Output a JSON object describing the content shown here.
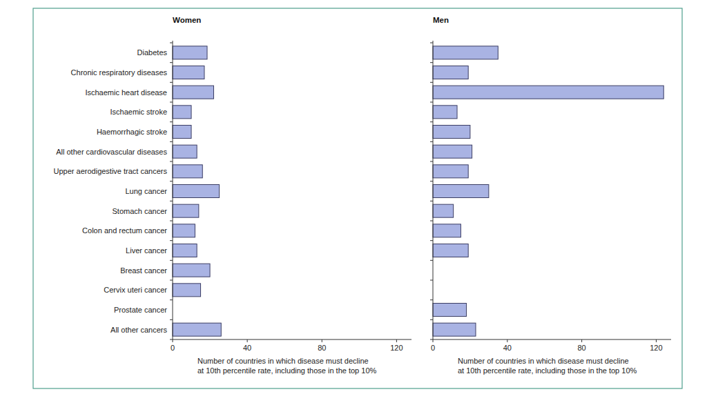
{
  "chart_data": [
    {
      "type": "bar",
      "orientation": "horizontal",
      "title": "Women",
      "categories": [
        "Diabetes",
        "Chronic respiratory diseases",
        "Ischaemic heart disease",
        "Ischaemic stroke",
        "Haemorrhagic stroke",
        "All other cardiovascular diseases",
        "Upper aerodigestive tract cancers",
        "Lung cancer",
        "Stomach cancer",
        "Colon and rectum cancer",
        "Liver cancer",
        "Breast cancer",
        "Cervix uteri cancer",
        "Prostate cancer",
        "All other cancers"
      ],
      "values": [
        18.5,
        17,
        22,
        10,
        10,
        13,
        16,
        25,
        14,
        12,
        13,
        20,
        15,
        0,
        26
      ],
      "color": "#a9b3e3",
      "xlabel": "Number of countries in which disease must decline\nat 10th percentile rate, including those in the top 10%",
      "xlim": [
        0,
        128
      ],
      "xticks": [
        0,
        40,
        80,
        120
      ],
      "grid": false
    },
    {
      "type": "bar",
      "orientation": "horizontal",
      "title": "Men",
      "categories": [
        null,
        null,
        null,
        null,
        null,
        null,
        null,
        null,
        null,
        null,
        null,
        null,
        null,
        null,
        null
      ],
      "values": [
        35,
        19,
        124,
        13,
        20,
        21,
        19,
        30,
        11,
        15,
        19,
        0,
        0,
        18,
        23
      ],
      "color": "#a9b3e3",
      "xlabel": "Number of countries in which disease must decline\nat 10th percentile rate, including those in the top 10%",
      "xlim": [
        0,
        128
      ],
      "xticks": [
        0,
        40,
        80,
        120
      ],
      "grid": false
    }
  ]
}
